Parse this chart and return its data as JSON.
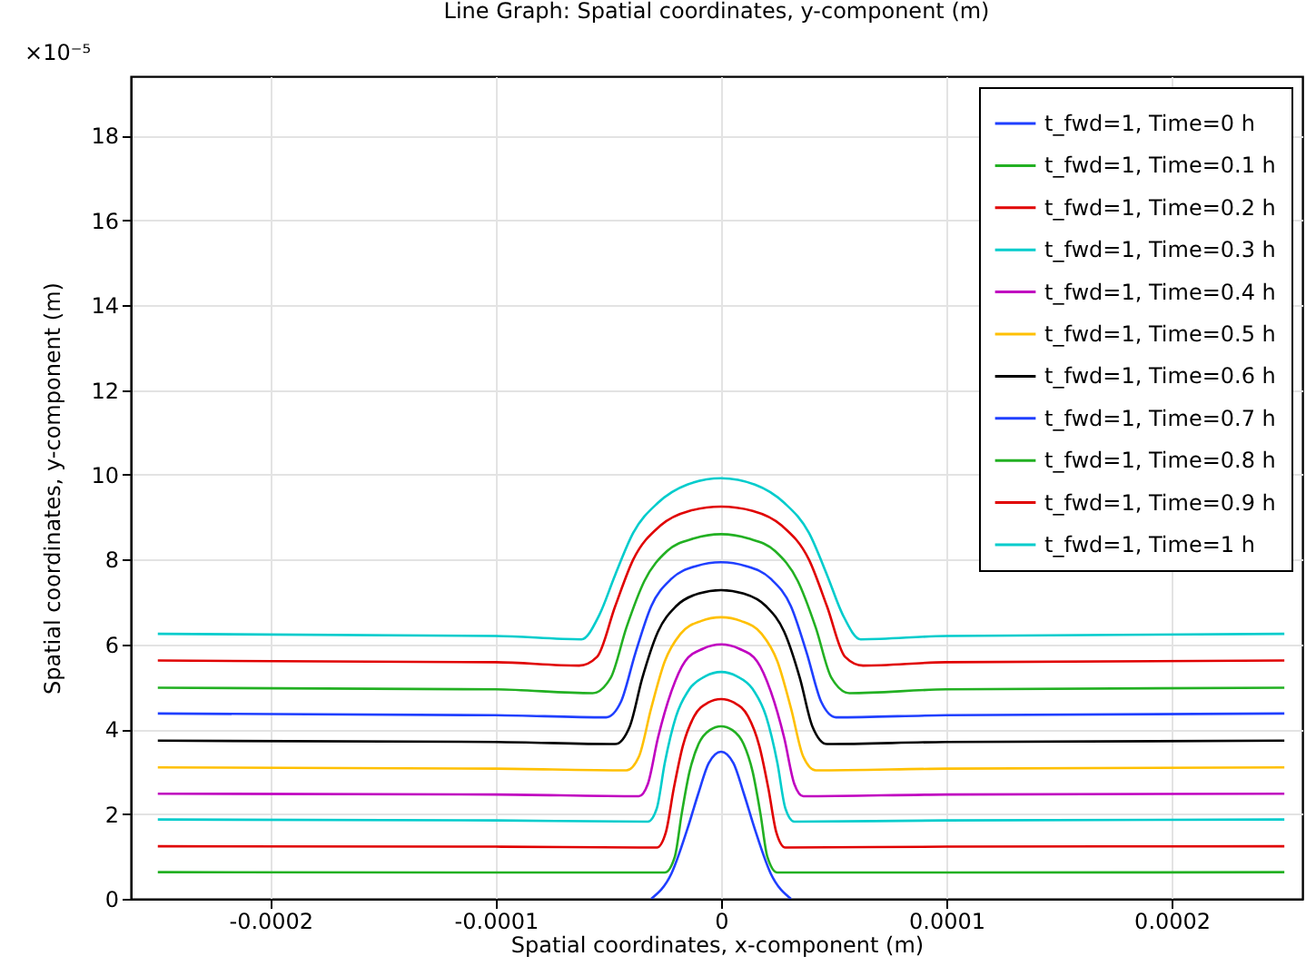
{
  "chart_data": {
    "type": "line",
    "title": "Line Graph: Spatial coordinates, y-component (m)",
    "xlabel": "Spatial coordinates, x-component (m)",
    "ylabel": "Spatial coordinates, y-component (m)",
    "annotations": [
      "×10⁻⁵"
    ],
    "xlim": [
      -0.000262,
      0.000258
    ],
    "ylim": [
      0,
      19.4
    ],
    "xticks": [
      -0.0002,
      -0.0001,
      0,
      0.0001,
      0.0002
    ],
    "yticks": [
      0,
      2,
      4,
      6,
      8,
      10,
      12,
      14,
      16,
      18
    ],
    "grid": true,
    "legend": "top right",
    "series": [
      {
        "name": "t_fwd=1, Time=0 h",
        "color": "#1f3fff",
        "x": [
          -3.1e-05,
          -2.2e-05,
          -1.5e-05,
          -1e-05,
          -5.5e-06,
          0,
          5.5e-06,
          1e-05,
          1.5e-05,
          2.2e-05,
          3.1e-05
        ],
        "values": [
          0,
          0.6,
          1.64,
          2.5,
          3.2,
          3.47,
          3.2,
          2.5,
          1.64,
          0.6,
          0
        ]
      },
      {
        "name": "t_fwd=1, Time=0.1 h",
        "color": "#22b022",
        "x": [
          -0.00025,
          -0.0001,
          -2.5e-05,
          -2.05e-05,
          -1.75e-05,
          -1.4e-05,
          -1e-05,
          -5e-06,
          0,
          5e-06,
          1e-05,
          1.4e-05,
          1.75e-05,
          2.05e-05,
          2.5e-05,
          0.0001,
          0.00025
        ],
        "values": [
          0.63,
          0.62,
          0.62,
          1.0,
          2.0,
          3.0,
          3.65,
          3.98,
          4.07,
          3.98,
          3.65,
          3.0,
          2.0,
          1.0,
          0.62,
          0.62,
          0.63
        ]
      },
      {
        "name": "t_fwd=1, Time=0.2 h",
        "color": "#e00000",
        "x": [
          -0.00025,
          -0.0001,
          -2.85e-05,
          -2.45e-05,
          -2.1e-05,
          -1.7e-05,
          -1.2e-05,
          -6e-06,
          0,
          6e-06,
          1.2e-05,
          1.7e-05,
          2.1e-05,
          2.45e-05,
          2.85e-05,
          0.0001,
          0.00025
        ],
        "values": [
          1.24,
          1.23,
          1.21,
          1.57,
          2.6,
          3.6,
          4.3,
          4.62,
          4.71,
          4.62,
          4.3,
          3.6,
          2.6,
          1.57,
          1.21,
          1.23,
          1.24
        ]
      },
      {
        "name": "t_fwd=1, Time=0.3 h",
        "color": "#00cccc",
        "x": [
          -0.00025,
          -0.0001,
          -3.25e-05,
          -2.85e-05,
          -2.5e-05,
          -2e-05,
          -1.4e-05,
          -7e-06,
          0,
          7e-06,
          1.4e-05,
          2e-05,
          2.5e-05,
          2.85e-05,
          3.25e-05,
          0.0001,
          0.00025
        ],
        "values": [
          1.87,
          1.85,
          1.82,
          2.14,
          3.2,
          4.3,
          4.95,
          5.25,
          5.35,
          5.25,
          4.95,
          4.3,
          3.2,
          2.14,
          1.82,
          1.85,
          1.87
        ]
      },
      {
        "name": "t_fwd=1, Time=0.4 h",
        "color": "#c000c0",
        "x": [
          -0.00025,
          -0.0001,
          -3.65e-05,
          -3.25e-05,
          -2.8e-05,
          -2.2e-05,
          -1.6e-05,
          -8e-06,
          0,
          8e-06,
          1.6e-05,
          2.2e-05,
          2.8e-05,
          3.25e-05,
          3.65e-05,
          0.0001,
          0.00025
        ],
        "values": [
          2.48,
          2.46,
          2.42,
          2.71,
          3.8,
          4.9,
          5.6,
          5.9,
          6.0,
          5.9,
          5.6,
          4.9,
          3.8,
          2.71,
          2.42,
          2.46,
          2.48
        ]
      },
      {
        "name": "t_fwd=1, Time=0.5 h",
        "color": "#ffc000",
        "x": [
          -0.00025,
          -0.0001,
          -4.2e-05,
          -3.65e-05,
          -3.1e-05,
          -2.5e-05,
          -1.8e-05,
          -9e-06,
          0,
          9e-06,
          1.8e-05,
          2.5e-05,
          3.1e-05,
          3.65e-05,
          4.2e-05,
          0.0001,
          0.00025
        ],
        "values": [
          3.1,
          3.07,
          3.03,
          3.35,
          4.5,
          5.6,
          6.25,
          6.55,
          6.64,
          6.55,
          6.25,
          5.6,
          4.5,
          3.35,
          3.03,
          3.07,
          3.1
        ]
      },
      {
        "name": "t_fwd=1, Time=0.6 h",
        "color": "#000000",
        "x": [
          -0.00025,
          -0.0001,
          -4.7e-05,
          -4.05e-05,
          -3.5e-05,
          -2.8e-05,
          -2e-05,
          -1e-05,
          0,
          1e-05,
          2e-05,
          2.8e-05,
          3.5e-05,
          4.05e-05,
          4.7e-05,
          0.0001,
          0.00025
        ],
        "values": [
          3.73,
          3.7,
          3.65,
          4.07,
          5.2,
          6.3,
          6.9,
          7.2,
          7.28,
          7.2,
          6.9,
          6.3,
          5.2,
          4.07,
          3.65,
          3.7,
          3.73
        ]
      },
      {
        "name": "t_fwd=1, Time=0.7 h",
        "color": "#1f3fff",
        "x": [
          -0.00025,
          -0.0001,
          -5.1e-05,
          -4.45e-05,
          -3.8e-05,
          -3.1e-05,
          -2.2e-05,
          -1.1e-05,
          0,
          1.1e-05,
          2.2e-05,
          3.1e-05,
          3.8e-05,
          4.45e-05,
          5.1e-05,
          0.0001,
          0.00025
        ],
        "values": [
          4.37,
          4.33,
          4.28,
          4.64,
          5.8,
          6.9,
          7.55,
          7.85,
          7.94,
          7.85,
          7.55,
          6.9,
          5.8,
          4.64,
          4.28,
          4.33,
          4.37
        ]
      },
      {
        "name": "t_fwd=1, Time=0.8 h",
        "color": "#22b022",
        "x": [
          -0.00025,
          -0.0001,
          -5.7e-05,
          -4.9e-05,
          -4.2e-05,
          -3.4e-05,
          -2.4e-05,
          -1.2e-05,
          0,
          1.2e-05,
          2.4e-05,
          3.4e-05,
          4.2e-05,
          4.9e-05,
          5.7e-05,
          0.0001,
          0.00025
        ],
        "values": [
          4.98,
          4.94,
          4.85,
          5.21,
          6.4,
          7.5,
          8.2,
          8.5,
          8.6,
          8.5,
          8.2,
          7.5,
          6.4,
          5.21,
          4.85,
          4.94,
          4.98
        ]
      },
      {
        "name": "t_fwd=1, Time=0.9 h",
        "color": "#e00000",
        "x": [
          -0.00025,
          -0.0001,
          -6.3e-05,
          -5.5e-05,
          -4.7e-05,
          -3.9e-05,
          -2.7e-05,
          -1.4e-05,
          0,
          1.4e-05,
          2.7e-05,
          3.9e-05,
          4.7e-05,
          5.5e-05,
          6.3e-05,
          0.0001,
          0.00025
        ],
        "values": [
          5.62,
          5.58,
          5.5,
          5.71,
          6.9,
          8.0,
          8.8,
          9.15,
          9.25,
          9.15,
          8.8,
          8.0,
          6.9,
          5.71,
          5.5,
          5.58,
          5.62
        ]
      },
      {
        "name": "t_fwd=1, Time=1 h",
        "color": "#00cccc",
        "x": [
          -0.00025,
          -0.0001,
          -6.2e-05,
          -5.4e-05,
          -4.7e-05,
          -3.9e-05,
          -2.8e-05,
          -1.5e-05,
          0,
          1.5e-05,
          2.8e-05,
          3.9e-05,
          4.7e-05,
          5.4e-05,
          6.2e-05,
          0.0001,
          0.00025
        ],
        "values": [
          6.25,
          6.2,
          6.12,
          6.7,
          7.64,
          8.63,
          9.34,
          9.77,
          9.92,
          9.77,
          9.34,
          8.63,
          7.64,
          6.7,
          6.12,
          6.2,
          6.25
        ]
      }
    ]
  }
}
